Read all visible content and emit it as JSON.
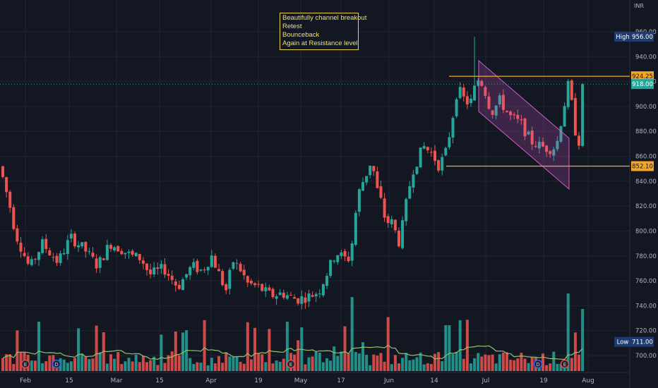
{
  "currency": "INR",
  "annotation": {
    "lines": [
      "Beautifully channel breakout",
      "Retest",
      "Bounceback",
      "Again at Resistance level"
    ]
  },
  "colors": {
    "background": "#131722",
    "up": "#26a69a",
    "down": "#ef5350",
    "level": "#f5a623",
    "channel": "#d05ac8",
    "volume_ma": "#8fc46b",
    "last_price": "#26a69a",
    "high_low_badge": "#1e3a6e"
  },
  "chart_data": {
    "type": "candlestick",
    "title": "",
    "yaxis": {
      "range": [
        686,
        966
      ],
      "ticks": [
        700,
        720,
        740,
        760,
        780,
        800,
        820,
        840,
        860,
        880,
        900,
        920,
        940,
        960
      ]
    },
    "xaxis": {
      "ticks": [
        "Feb",
        "15",
        "Mar",
        "15",
        "Apr",
        "19",
        "May",
        "17",
        "Jun",
        "14",
        "Jul",
        "19",
        "Aug"
      ]
    },
    "price_labels": [
      {
        "label": "High",
        "value": "956.00"
      },
      {
        "label": "",
        "value": "924.25"
      },
      {
        "label": "",
        "value": "918.00"
      },
      {
        "label": "",
        "value": "852.10"
      },
      {
        "label": "Low",
        "value": "711.00"
      }
    ],
    "horizontal_levels": [
      924.25,
      852.1
    ],
    "grid": true,
    "earnings_markers": [
      {
        "letter": "E"
      },
      {
        "letter": "D"
      },
      {
        "letter": "E"
      },
      {
        "letter": "D"
      },
      {
        "letter": "E"
      }
    ]
  }
}
